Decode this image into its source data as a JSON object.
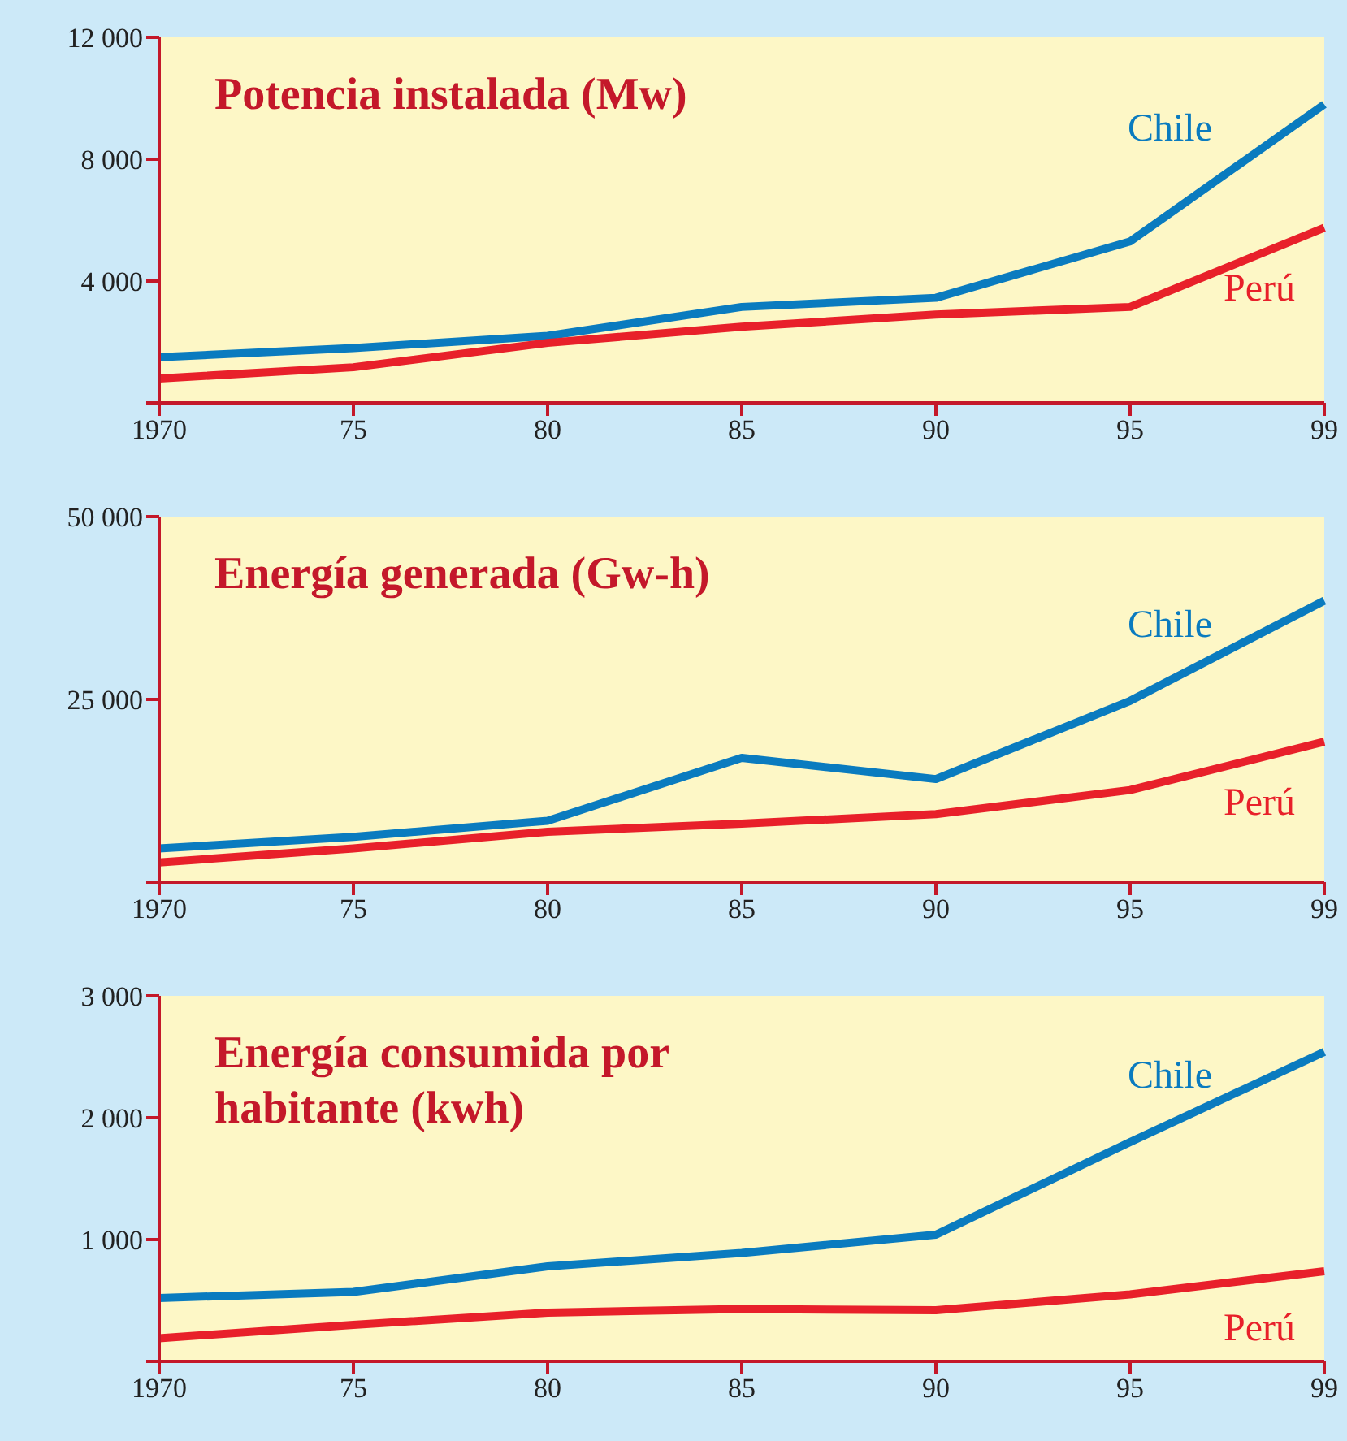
{
  "chart_data": [
    {
      "type": "line",
      "title": "Potencia instalada (Mw)",
      "categories": [
        "1970",
        "75",
        "80",
        "85",
        "90",
        "95",
        "99"
      ],
      "ylim": [
        0,
        12000
      ],
      "yticks": [
        {
          "value": 0,
          "label": null
        },
        {
          "value": 4000,
          "label": "4 000"
        },
        {
          "value": 8000,
          "label": "8 000"
        },
        {
          "value": 12000,
          "label": "12 000"
        }
      ],
      "grid": false,
      "legend": false,
      "marker": "none",
      "series": [
        {
          "name": "Chile",
          "color": "#0a7bbf",
          "values": [
            1500,
            1800,
            2200,
            3150,
            3450,
            5300,
            9800
          ]
        },
        {
          "name": "Perú",
          "color": "#e8202a",
          "values": [
            800,
            1170,
            1970,
            2500,
            2900,
            3150,
            5750
          ]
        }
      ]
    },
    {
      "type": "line",
      "title": "Energía generada (Gw-h)",
      "categories": [
        "1970",
        "75",
        "80",
        "85",
        "90",
        "95",
        "99"
      ],
      "ylim": [
        0,
        50000
      ],
      "yticks": [
        {
          "value": 0,
          "label": null
        },
        {
          "value": 25000,
          "label": "25 000"
        },
        {
          "value": 50000,
          "label": "50 000"
        }
      ],
      "grid": false,
      "legend": false,
      "marker": "none",
      "series": [
        {
          "name": "Chile",
          "color": "#0a7bbf",
          "values": [
            4600,
            6200,
            8400,
            17000,
            14100,
            24800,
            38500
          ]
        },
        {
          "name": "Perú",
          "color": "#e8202a",
          "values": [
            2700,
            4600,
            6900,
            8000,
            9300,
            12600,
            19200
          ]
        }
      ]
    },
    {
      "type": "line",
      "title": "Energía consumida por habitante (kwh)",
      "categories": [
        "1970",
        "75",
        "80",
        "85",
        "90",
        "95",
        "99"
      ],
      "ylim": [
        0,
        3000
      ],
      "yticks": [
        {
          "value": 0,
          "label": null
        },
        {
          "value": 1000,
          "label": "1 000"
        },
        {
          "value": 2000,
          "label": "2 000"
        },
        {
          "value": 3000,
          "label": "3 000"
        }
      ],
      "grid": false,
      "legend": false,
      "marker": "none",
      "series": [
        {
          "name": "Chile",
          "color": "#0a7bbf",
          "values": [
            520,
            570,
            780,
            890,
            1040,
            1800,
            2540
          ]
        },
        {
          "name": "Perú",
          "color": "#e8202a",
          "values": [
            190,
            300,
            400,
            430,
            420,
            550,
            740
          ]
        }
      ]
    }
  ]
}
